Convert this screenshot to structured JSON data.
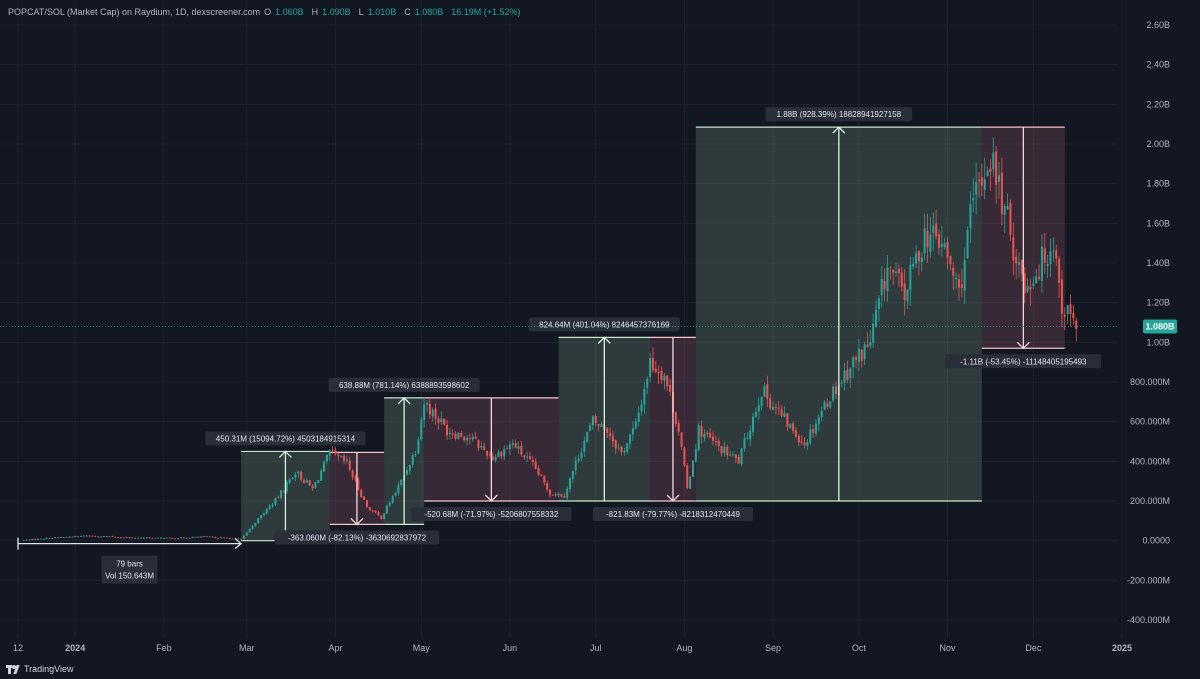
{
  "header": {
    "title": "POPCAT/SOL (Market Cap) on Raydium, 1D, dexscreener.com",
    "o_key": "O",
    "o_val": "1.060B",
    "h_key": "H",
    "h_val": "1.090B",
    "l_key": "L",
    "l_val": "1.010B",
    "c_key": "C",
    "c_val": "1.080B",
    "change": "16.19M (+1.52%)"
  },
  "branding": {
    "label": "TradingView"
  },
  "colors": {
    "bg": "#131722",
    "up": "#26a69a",
    "down": "#ef5350",
    "text": "#d1d4dc",
    "green_box": "#3c4a44",
    "red_box": "#3f2e34"
  },
  "chart_data": {
    "type": "candlestick",
    "title": "POPCAT/SOL (Market Cap) on Raydium, 1D, dexscreener.com",
    "last_price_label": "1.080B",
    "last_price_value": 1080,
    "y_unit": "M",
    "ylim": [
      -450,
      2670
    ],
    "y_ticks": [
      {
        "v": 2600,
        "label": "2.60B"
      },
      {
        "v": 2400,
        "label": "2.40B"
      },
      {
        "v": 2200,
        "label": "2.20B"
      },
      {
        "v": 2000,
        "label": "2.00B"
      },
      {
        "v": 1800,
        "label": "1.80B"
      },
      {
        "v": 1600,
        "label": "1.60B"
      },
      {
        "v": 1400,
        "label": "1.40B"
      },
      {
        "v": 1200,
        "label": "1.20B"
      },
      {
        "v": 1000,
        "label": "1.00B"
      },
      {
        "v": 800,
        "label": "800.000M"
      },
      {
        "v": 600,
        "label": "600.000M"
      },
      {
        "v": 400,
        "label": "400.000M"
      },
      {
        "v": 200,
        "label": "200.000M"
      },
      {
        "v": 0,
        "label": "0.0000"
      },
      {
        "v": -200,
        "label": "-200.000M"
      },
      {
        "v": -400,
        "label": "-400.000M"
      }
    ],
    "x_ticks": [
      {
        "label": "12",
        "date": "2023-12-12",
        "bold": false
      },
      {
        "label": "2024",
        "date": "2024-01-01",
        "bold": true
      },
      {
        "label": "Feb",
        "date": "2024-02-01",
        "bold": false
      },
      {
        "label": "Mar",
        "date": "2024-03-01",
        "bold": false
      },
      {
        "label": "Apr",
        "date": "2024-04-01",
        "bold": false
      },
      {
        "label": "May",
        "date": "2024-05-01",
        "bold": false
      },
      {
        "label": "Jun",
        "date": "2024-06-01",
        "bold": false
      },
      {
        "label": "Jul",
        "date": "2024-07-01",
        "bold": false
      },
      {
        "label": "Aug",
        "date": "2024-08-01",
        "bold": false
      },
      {
        "label": "Sep",
        "date": "2024-09-01",
        "bold": false
      },
      {
        "label": "Oct",
        "date": "2024-10-01",
        "bold": false
      },
      {
        "label": "Nov",
        "date": "2024-11-01",
        "bold": false
      },
      {
        "label": "Dec",
        "date": "2024-12-01",
        "bold": false
      },
      {
        "label": "2025",
        "date": "2025-01-01",
        "bold": true
      }
    ],
    "close_path": [
      [
        "2023-12-14",
        3
      ],
      [
        "2023-12-25",
        15
      ],
      [
        "2024-01-05",
        25
      ],
      [
        "2024-01-20",
        15
      ],
      [
        "2024-02-05",
        12
      ],
      [
        "2024-02-15",
        20
      ],
      [
        "2024-02-28",
        8
      ],
      [
        "2024-03-05",
        110
      ],
      [
        "2024-03-12",
        220
      ],
      [
        "2024-03-18",
        350
      ],
      [
        "2024-03-24",
        260
      ],
      [
        "2024-03-30",
        440
      ],
      [
        "2024-04-05",
        390
      ],
      [
        "2024-04-12",
        170
      ],
      [
        "2024-04-17",
        115
      ],
      [
        "2024-04-24",
        300
      ],
      [
        "2024-04-29",
        460
      ],
      [
        "2024-05-02",
        700
      ],
      [
        "2024-05-10",
        560
      ],
      [
        "2024-05-18",
        520
      ],
      [
        "2024-05-26",
        420
      ],
      [
        "2024-06-02",
        490
      ],
      [
        "2024-06-10",
        360
      ],
      [
        "2024-06-15",
        240
      ],
      [
        "2024-06-20",
        230
      ],
      [
        "2024-06-26",
        470
      ],
      [
        "2024-06-30",
        600
      ],
      [
        "2024-07-05",
        560
      ],
      [
        "2024-07-10",
        440
      ],
      [
        "2024-07-15",
        580
      ],
      [
        "2024-07-20",
        900
      ],
      [
        "2024-07-25",
        840
      ],
      [
        "2024-07-30",
        560
      ],
      [
        "2024-08-02",
        260
      ],
      [
        "2024-08-06",
        560
      ],
      [
        "2024-08-13",
        470
      ],
      [
        "2024-08-20",
        400
      ],
      [
        "2024-08-28",
        760
      ],
      [
        "2024-09-06",
        590
      ],
      [
        "2024-09-12",
        490
      ],
      [
        "2024-09-20",
        710
      ],
      [
        "2024-09-28",
        880
      ],
      [
        "2024-10-05",
        1000
      ],
      [
        "2024-10-11",
        1380
      ],
      [
        "2024-10-17",
        1240
      ],
      [
        "2024-10-24",
        1550
      ],
      [
        "2024-10-30",
        1500
      ],
      [
        "2024-11-05",
        1250
      ],
      [
        "2024-11-10",
        1700
      ],
      [
        "2024-11-16",
        1950
      ],
      [
        "2024-11-22",
        1600
      ],
      [
        "2024-11-28",
        1280
      ],
      [
        "2024-12-03",
        1380
      ],
      [
        "2024-12-08",
        1520
      ],
      [
        "2024-12-11",
        1190
      ],
      [
        "2024-12-16",
        1080
      ]
    ],
    "measurements": [
      {
        "kind": "bars-range",
        "from": "2023-12-12",
        "to": "2024-02-28",
        "level": -15,
        "line1": "79 bars",
        "line2": "Vol 150.643M"
      },
      {
        "kind": "up",
        "from": "2024-02-28",
        "to": "2024-03-30",
        "low": 0,
        "high": 450,
        "label": "450.31M (15094.72%) 4503184915314"
      },
      {
        "kind": "down",
        "from": "2024-03-30",
        "to": "2024-04-18",
        "low": 82,
        "high": 445,
        "label": "-363.060M (-82.13%) -3630692837972"
      },
      {
        "kind": "up",
        "from": "2024-04-18",
        "to": "2024-05-02",
        "low": 82,
        "high": 720,
        "label": "638.88M (781.14%) 6388893598602"
      },
      {
        "kind": "down",
        "from": "2024-05-02",
        "to": "2024-06-18",
        "low": 200,
        "high": 720,
        "label": "-520.68M (-71.97%) -5206807558332"
      },
      {
        "kind": "up",
        "from": "2024-06-18",
        "to": "2024-07-20",
        "low": 200,
        "high": 1025,
        "label": "824.64M (401.04%) 8246457376169"
      },
      {
        "kind": "down",
        "from": "2024-07-20",
        "to": "2024-08-05",
        "low": 200,
        "high": 1025,
        "label": "-821.83M (-79.77%) -8218312470449"
      },
      {
        "kind": "up",
        "from": "2024-08-05",
        "to": "2024-11-13",
        "low": 200,
        "high": 2085,
        "label": "1.88B (928.39%) 18828941927158"
      },
      {
        "kind": "down",
        "from": "2024-11-13",
        "to": "2024-12-12",
        "low": 970,
        "high": 2085,
        "label": "-1.11B (-53.45%) -11148405195493"
      }
    ]
  }
}
